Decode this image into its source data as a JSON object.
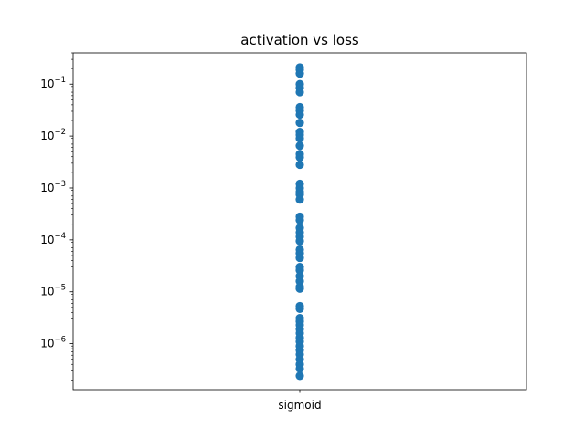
{
  "chart_data": {
    "type": "scatter",
    "title": "activation vs loss",
    "xlabel": "",
    "ylabel": "",
    "yscale": "log",
    "ylim": [
      1.3e-07,
      0.4
    ],
    "grid": false,
    "categories": [
      "sigmoid"
    ],
    "y_tick_labels": [
      {
        "exp": -6,
        "label": "10^-6"
      },
      {
        "exp": -5,
        "label": "10^-5"
      },
      {
        "exp": -4,
        "label": "10^-4"
      },
      {
        "exp": -3,
        "label": "10^-3"
      },
      {
        "exp": -2,
        "label": "10^-2"
      },
      {
        "exp": -1,
        "label": "10^-1"
      }
    ],
    "series": [
      {
        "color": "#1f77b4",
        "x": "sigmoid",
        "values": [
          0.21,
          0.19,
          0.16,
          0.1,
          0.085,
          0.07,
          0.036,
          0.031,
          0.026,
          0.018,
          0.012,
          0.0105,
          0.009,
          0.0065,
          0.0045,
          0.0039,
          0.0028,
          0.0012,
          0.001,
          0.00085,
          0.00075,
          0.0006,
          0.00028,
          0.00024,
          0.00017,
          0.00014,
          0.000115,
          9.5e-05,
          6.5e-05,
          5.5e-05,
          4.5e-05,
          3e-05,
          2.6e-05,
          2e-05,
          1.6e-05,
          1.25e-05,
          1.15e-05,
          5.3e-06,
          4.7e-06,
          3.1e-06,
          2.7e-06,
          2.3e-06,
          1.9e-06,
          1.6e-06,
          1.3e-06,
          1.1e-06,
          9e-07,
          7.5e-07,
          6.2e-07,
          5e-07,
          4e-07,
          3.3e-07,
          2.4e-07
        ]
      }
    ]
  }
}
